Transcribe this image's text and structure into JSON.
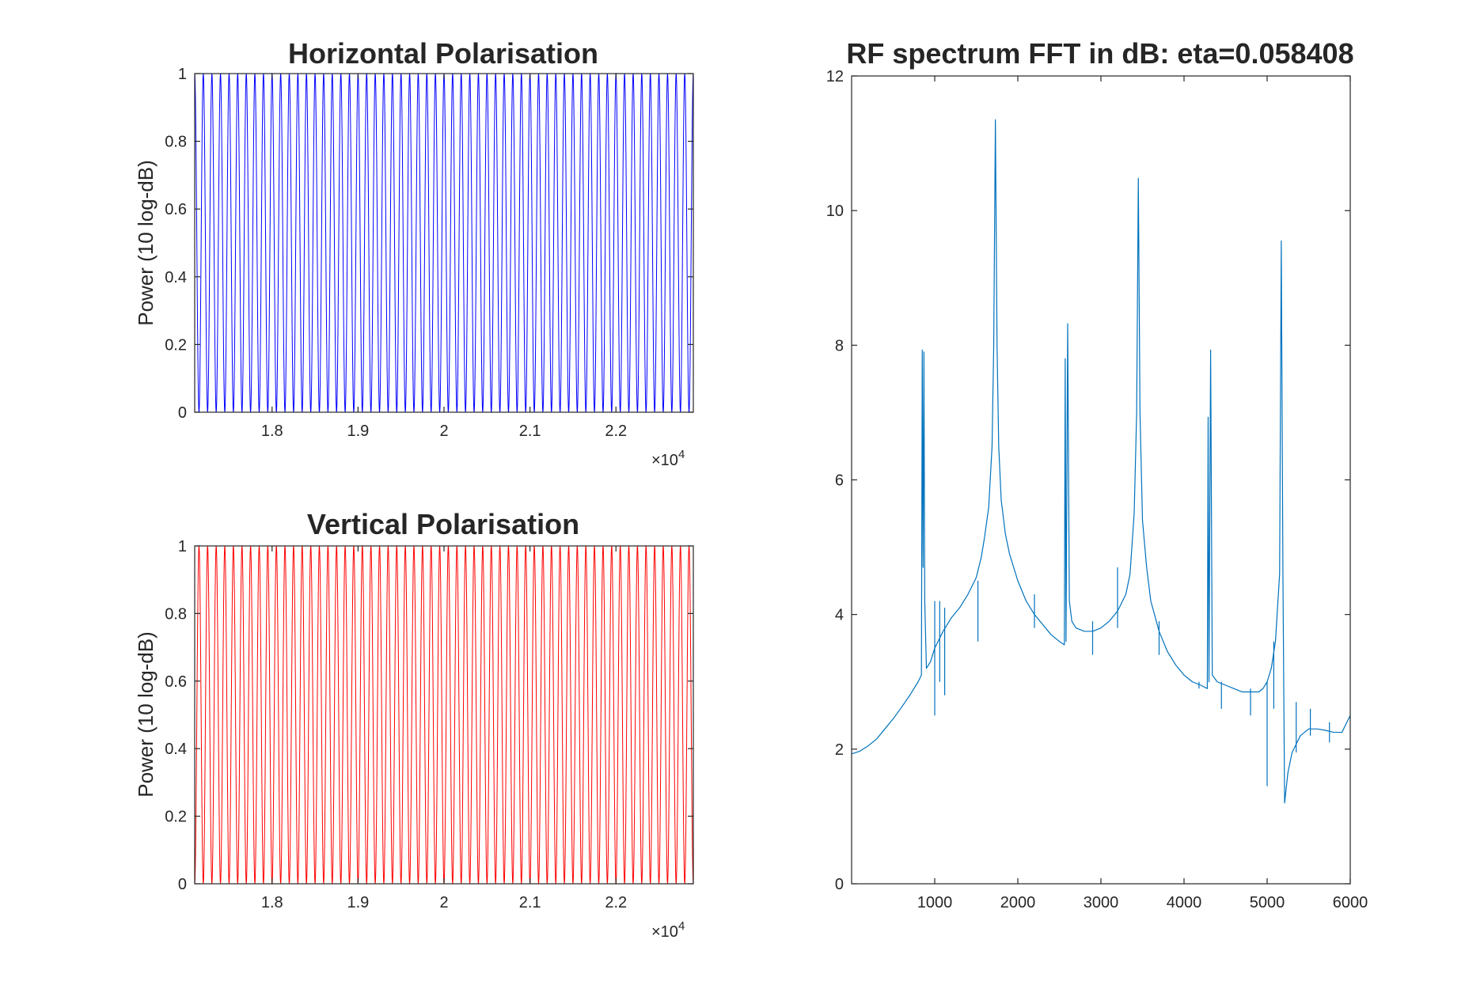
{
  "chart_data": [
    {
      "type": "line",
      "title": "Horizontal Polarisation",
      "xlabel": "",
      "ylabel": "Power (10 log-dB)",
      "xlim": [
        17100,
        22900
      ],
      "ylim": [
        0,
        1
      ],
      "x_exponent_label": "×10",
      "x_exponent_power": "4",
      "x_ticks": [
        18000,
        19000,
        20000,
        21000,
        22000
      ],
      "x_tick_labels": [
        "1.8",
        "1.9",
        "2",
        "2.1",
        "2.2"
      ],
      "y_ticks": [
        0,
        0.2,
        0.4,
        0.6,
        0.8,
        1
      ],
      "y_tick_labels": [
        "0",
        "0.2",
        "0.4",
        "0.6",
        "0.8",
        "1"
      ],
      "series": [
        {
          "color": "#0000ff",
          "waveform": "cos^2 oscillation between 0 and 1",
          "period": 100,
          "phase_x": 17100
        }
      ],
      "grid": false
    },
    {
      "type": "line",
      "title": "Vertical Polarisation",
      "xlabel": "",
      "ylabel": "Power (10 log-dB)",
      "xlim": [
        17100,
        22900
      ],
      "ylim": [
        0,
        1
      ],
      "x_exponent_label": "×10",
      "x_exponent_power": "4",
      "x_ticks": [
        18000,
        19000,
        20000,
        21000,
        22000
      ],
      "x_tick_labels": [
        "1.8",
        "1.9",
        "2",
        "2.1",
        "2.2"
      ],
      "y_ticks": [
        0,
        0.2,
        0.4,
        0.6,
        0.8,
        1
      ],
      "y_tick_labels": [
        "0",
        "0.2",
        "0.4",
        "0.6",
        "0.8",
        "1"
      ],
      "series": [
        {
          "color": "#ff0000",
          "waveform": "sin^2 oscillation between 0 and 1",
          "period": 100,
          "phase_x": 17100
        }
      ],
      "grid": false
    },
    {
      "type": "line",
      "title": "RF spectrum FFT in dB: eta=0.058408",
      "xlabel": "",
      "ylabel": "",
      "xlim": [
        0,
        6000
      ],
      "ylim": [
        0,
        12
      ],
      "x_ticks": [
        1000,
        2000,
        3000,
        4000,
        5000,
        6000
      ],
      "x_tick_labels": [
        "1000",
        "2000",
        "3000",
        "4000",
        "5000",
        "6000"
      ],
      "y_ticks": [
        0,
        2,
        4,
        6,
        8,
        10,
        12
      ],
      "y_tick_labels": [
        "0",
        "2",
        "4",
        "6",
        "8",
        "10",
        "12"
      ],
      "grid": false,
      "series": [
        {
          "color": "#0072bd",
          "points": [
            [
              0,
              1.93
            ],
            [
              100,
              1.97
            ],
            [
              200,
              2.05
            ],
            [
              300,
              2.15
            ],
            [
              400,
              2.3
            ],
            [
              500,
              2.45
            ],
            [
              600,
              2.62
            ],
            [
              700,
              2.8
            ],
            [
              800,
              3.0
            ],
            [
              840,
              3.1
            ],
            [
              850,
              7.93
            ],
            [
              860,
              4.7
            ],
            [
              870,
              7.9
            ],
            [
              880,
              4.2
            ],
            [
              900,
              3.2
            ],
            [
              950,
              3.3
            ],
            [
              1000,
              3.5
            ],
            [
              1100,
              3.75
            ],
            [
              1200,
              3.95
            ],
            [
              1300,
              4.1
            ],
            [
              1400,
              4.3
            ],
            [
              1500,
              4.55
            ],
            [
              1560,
              4.85
            ],
            [
              1600,
              5.15
            ],
            [
              1650,
              5.6
            ],
            [
              1690,
              6.5
            ],
            [
              1710,
              8.0
            ],
            [
              1730,
              11.35
            ],
            [
              1750,
              8.0
            ],
            [
              1770,
              6.5
            ],
            [
              1800,
              5.7
            ],
            [
              1850,
              5.2
            ],
            [
              1900,
              4.9
            ],
            [
              2000,
              4.5
            ],
            [
              2100,
              4.2
            ],
            [
              2200,
              4.0
            ],
            [
              2300,
              3.85
            ],
            [
              2400,
              3.7
            ],
            [
              2500,
              3.6
            ],
            [
              2560,
              3.55
            ],
            [
              2570,
              7.8
            ],
            [
              2580,
              3.6
            ],
            [
              2600,
              8.32
            ],
            [
              2620,
              4.2
            ],
            [
              2650,
              3.9
            ],
            [
              2700,
              3.8
            ],
            [
              2800,
              3.75
            ],
            [
              2900,
              3.75
            ],
            [
              3000,
              3.8
            ],
            [
              3100,
              3.9
            ],
            [
              3200,
              4.05
            ],
            [
              3300,
              4.3
            ],
            [
              3350,
              4.6
            ],
            [
              3400,
              5.5
            ],
            [
              3430,
              7.0
            ],
            [
              3450,
              10.48
            ],
            [
              3470,
              7.0
            ],
            [
              3500,
              5.4
            ],
            [
              3550,
              4.7
            ],
            [
              3600,
              4.2
            ],
            [
              3700,
              3.75
            ],
            [
              3800,
              3.45
            ],
            [
              3900,
              3.25
            ],
            [
              4000,
              3.1
            ],
            [
              4100,
              3.0
            ],
            [
              4200,
              2.95
            ],
            [
              4280,
              2.9
            ],
            [
              4290,
              6.93
            ],
            [
              4300,
              3.0
            ],
            [
              4320,
              7.93
            ],
            [
              4340,
              3.1
            ],
            [
              4400,
              3.0
            ],
            [
              4500,
              2.95
            ],
            [
              4600,
              2.9
            ],
            [
              4700,
              2.85
            ],
            [
              4800,
              2.85
            ],
            [
              4900,
              2.85
            ],
            [
              4950,
              2.9
            ],
            [
              5000,
              3.0
            ],
            [
              5050,
              3.2
            ],
            [
              5100,
              3.6
            ],
            [
              5150,
              4.6
            ],
            [
              5170,
              9.55
            ],
            [
              5190,
              4.6
            ],
            [
              5210,
              1.2
            ],
            [
              5250,
              1.65
            ],
            [
              5300,
              1.95
            ],
            [
              5400,
              2.2
            ],
            [
              5500,
              2.3
            ],
            [
              5600,
              2.3
            ],
            [
              5700,
              2.28
            ],
            [
              5800,
              2.25
            ],
            [
              5900,
              2.25
            ],
            [
              6000,
              2.5
            ]
          ],
          "spikes": [
            [
              1000,
              4.2,
              2.5
            ],
            [
              1060,
              4.2,
              3.0
            ],
            [
              1120,
              4.1,
              2.8
            ],
            [
              1520,
              4.5,
              3.6
            ],
            [
              2200,
              4.3,
              3.8
            ],
            [
              2900,
              3.4,
              3.9
            ],
            [
              3200,
              4.7,
              3.8
            ],
            [
              3700,
              3.4,
              3.9
            ],
            [
              4180,
              3.0,
              2.9
            ],
            [
              4450,
              2.6,
              3.0
            ],
            [
              4800,
              2.5,
              2.9
            ],
            [
              5000,
              1.45,
              3.0
            ],
            [
              5080,
              3.6,
              2.6
            ],
            [
              5350,
              1.95,
              2.7
            ],
            [
              5520,
              2.6,
              2.2
            ],
            [
              5750,
              2.1,
              2.4
            ]
          ]
        }
      ]
    }
  ]
}
